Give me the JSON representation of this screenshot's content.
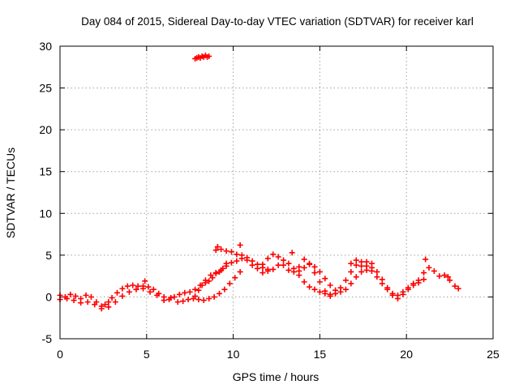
{
  "chart_data": {
    "type": "scatter",
    "title": "Day 084 of 2015, Sidereal Day-to-day VTEC variation (SDTVAR) for receiver karl",
    "xlabel": "GPS time / hours",
    "ylabel": "SDTVAR / TECUs",
    "xlim": [
      0,
      25
    ],
    "ylim": [
      -5,
      30
    ],
    "x_ticks": [
      0,
      5,
      10,
      15,
      20,
      25
    ],
    "y_ticks": [
      -5,
      0,
      5,
      10,
      15,
      20,
      25,
      30
    ],
    "x_tick_labels": [
      "0",
      "5",
      "10",
      "15",
      "20",
      "25"
    ],
    "y_tick_labels": [
      "-5",
      "0",
      "5",
      "10",
      "15",
      "20",
      "25",
      "30"
    ],
    "grid": true,
    "marker": "+",
    "series": [
      {
        "name": "SDTVAR",
        "color": "#ff0000",
        "points": [
          [
            0.0,
            0.2
          ],
          [
            0.3,
            0.0
          ],
          [
            0.6,
            0.3
          ],
          [
            0.9,
            0.1
          ],
          [
            1.2,
            -0.2
          ],
          [
            1.5,
            0.2
          ],
          [
            1.8,
            0.0
          ],
          [
            2.1,
            -0.6
          ],
          [
            2.4,
            -1.1
          ],
          [
            2.6,
            -0.9
          ],
          [
            2.8,
            -0.6
          ],
          [
            3.0,
            -0.1
          ],
          [
            3.3,
            0.5
          ],
          [
            3.6,
            1.0
          ],
          [
            3.9,
            1.3
          ],
          [
            4.2,
            1.4
          ],
          [
            4.5,
            1.3
          ],
          [
            4.8,
            1.3
          ],
          [
            5.1,
            1.2
          ],
          [
            5.4,
            0.9
          ],
          [
            5.7,
            0.4
          ],
          [
            6.0,
            0.0
          ],
          [
            6.3,
            -0.3
          ],
          [
            6.6,
            0.0
          ],
          [
            6.9,
            0.3
          ],
          [
            7.2,
            0.5
          ],
          [
            7.5,
            0.6
          ],
          [
            7.8,
            0.9
          ],
          [
            8.1,
            1.4
          ],
          [
            8.4,
            2.0
          ],
          [
            8.7,
            2.6
          ],
          [
            9.0,
            2.9
          ],
          [
            9.3,
            3.2
          ],
          [
            9.6,
            3.7
          ],
          [
            9.9,
            4.1
          ],
          [
            10.2,
            4.3
          ],
          [
            10.5,
            4.6
          ],
          [
            10.8,
            4.4
          ],
          [
            11.1,
            3.8
          ],
          [
            11.4,
            3.4
          ],
          [
            11.7,
            3.9
          ],
          [
            12.0,
            4.6
          ],
          [
            12.3,
            5.1
          ],
          [
            12.6,
            4.8
          ],
          [
            12.9,
            3.8
          ],
          [
            13.2,
            3.2
          ],
          [
            13.5,
            3.0
          ],
          [
            13.8,
            3.6
          ],
          [
            14.1,
            4.5
          ],
          [
            14.4,
            4.0
          ],
          [
            14.7,
            2.9
          ],
          [
            15.0,
            1.8
          ],
          [
            15.3,
            0.7
          ],
          [
            15.6,
            0.1
          ],
          [
            15.9,
            0.4
          ],
          [
            16.2,
            1.1
          ],
          [
            16.5,
            2.0
          ],
          [
            16.8,
            3.0
          ],
          [
            17.1,
            3.8
          ],
          [
            17.4,
            3.7
          ],
          [
            17.7,
            4.2
          ],
          [
            18.0,
            4.0
          ],
          [
            18.3,
            3.0
          ],
          [
            18.6,
            2.1
          ],
          [
            18.9,
            1.1
          ],
          [
            19.2,
            0.4
          ],
          [
            19.5,
            0.2
          ],
          [
            19.8,
            0.6
          ],
          [
            20.1,
            1.1
          ],
          [
            20.4,
            1.6
          ],
          [
            20.7,
            2.0
          ],
          [
            21.0,
            2.9
          ],
          [
            21.3,
            3.5
          ],
          [
            21.6,
            3.1
          ],
          [
            21.9,
            2.5
          ],
          [
            22.2,
            2.6
          ],
          [
            22.5,
            2.0
          ],
          [
            22.8,
            1.3
          ],
          [
            23.0,
            1.0
          ],
          [
            6.8,
            -0.6
          ],
          [
            7.1,
            -0.5
          ],
          [
            7.4,
            -0.3
          ],
          [
            7.7,
            -0.2
          ],
          [
            8.0,
            -0.3
          ],
          [
            8.3,
            -0.4
          ],
          [
            8.6,
            -0.2
          ],
          [
            8.9,
            0.0
          ],
          [
            9.2,
            0.4
          ],
          [
            9.5,
            0.9
          ],
          [
            9.8,
            1.6
          ],
          [
            10.1,
            2.3
          ],
          [
            10.4,
            3.0
          ],
          [
            7.8,
            0.1
          ],
          [
            8.0,
            0.8
          ],
          [
            8.2,
            1.4
          ],
          [
            8.4,
            1.7
          ],
          [
            8.6,
            1.9
          ],
          [
            8.8,
            2.3
          ],
          [
            9.0,
            2.8
          ],
          [
            9.2,
            3.0
          ],
          [
            9.4,
            3.4
          ],
          [
            9.6,
            4.0
          ],
          [
            9.0,
            5.6
          ],
          [
            9.3,
            5.7
          ],
          [
            9.6,
            5.5
          ],
          [
            9.9,
            5.4
          ],
          [
            10.2,
            5.1
          ],
          [
            10.5,
            5.0
          ],
          [
            10.8,
            4.7
          ],
          [
            11.1,
            4.3
          ],
          [
            11.4,
            3.9
          ],
          [
            11.7,
            3.5
          ],
          [
            12.0,
            3.3
          ],
          [
            11.7,
            2.9
          ],
          [
            12.0,
            3.1
          ],
          [
            12.3,
            3.3
          ],
          [
            12.6,
            3.8
          ],
          [
            12.9,
            4.4
          ],
          [
            13.2,
            4.0
          ],
          [
            13.5,
            3.4
          ],
          [
            13.8,
            2.6
          ],
          [
            14.1,
            1.8
          ],
          [
            14.4,
            1.2
          ],
          [
            14.7,
            0.9
          ],
          [
            15.0,
            0.6
          ],
          [
            15.3,
            0.4
          ],
          [
            15.6,
            0.3
          ],
          [
            13.8,
            3.1
          ],
          [
            14.1,
            3.5
          ],
          [
            14.4,
            3.9
          ],
          [
            14.7,
            3.6
          ],
          [
            15.0,
            3.0
          ],
          [
            15.3,
            2.2
          ],
          [
            15.6,
            1.4
          ],
          [
            15.9,
            0.8
          ],
          [
            16.2,
            0.6
          ],
          [
            16.5,
            0.9
          ],
          [
            16.8,
            1.6
          ],
          [
            17.1,
            2.4
          ],
          [
            17.4,
            3.0
          ],
          [
            17.7,
            3.2
          ],
          [
            18.0,
            3.5
          ],
          [
            16.8,
            4.0
          ],
          [
            17.1,
            4.4
          ],
          [
            17.4,
            4.2
          ],
          [
            17.7,
            3.7
          ],
          [
            18.0,
            3.1
          ],
          [
            18.3,
            2.4
          ],
          [
            18.6,
            1.6
          ],
          [
            18.9,
            0.9
          ],
          [
            19.2,
            0.2
          ],
          [
            19.5,
            -0.2
          ],
          [
            19.8,
            0.3
          ],
          [
            20.1,
            0.9
          ],
          [
            20.4,
            1.4
          ],
          [
            20.7,
            1.7
          ],
          [
            21.0,
            2.1
          ],
          [
            0.0,
            -0.3
          ],
          [
            0.4,
            -0.2
          ],
          [
            0.8,
            -0.4
          ],
          [
            1.2,
            -0.7
          ],
          [
            1.6,
            -0.6
          ],
          [
            2.0,
            -0.9
          ],
          [
            2.4,
            -1.4
          ],
          [
            2.8,
            -1.2
          ],
          [
            3.2,
            -0.6
          ],
          [
            3.6,
            0.1
          ],
          [
            4.0,
            0.6
          ],
          [
            4.4,
            0.9
          ],
          [
            4.8,
            1.0
          ],
          [
            5.2,
            0.6
          ],
          [
            5.6,
            0.2
          ],
          [
            6.0,
            -0.4
          ],
          [
            6.4,
            -0.1
          ],
          [
            4.9,
            1.9
          ],
          [
            9.1,
            6.0
          ],
          [
            10.4,
            6.2
          ],
          [
            13.4,
            5.3
          ],
          [
            21.1,
            4.5
          ],
          [
            22.4,
            2.4
          ],
          [
            7.8,
            28.5
          ],
          [
            7.9,
            28.6
          ],
          [
            8.0,
            28.7
          ],
          [
            8.1,
            28.6
          ],
          [
            8.2,
            28.8
          ],
          [
            8.3,
            28.7
          ],
          [
            8.4,
            28.9
          ],
          [
            8.5,
            28.7
          ],
          [
            8.6,
            28.8
          ]
        ]
      }
    ]
  }
}
